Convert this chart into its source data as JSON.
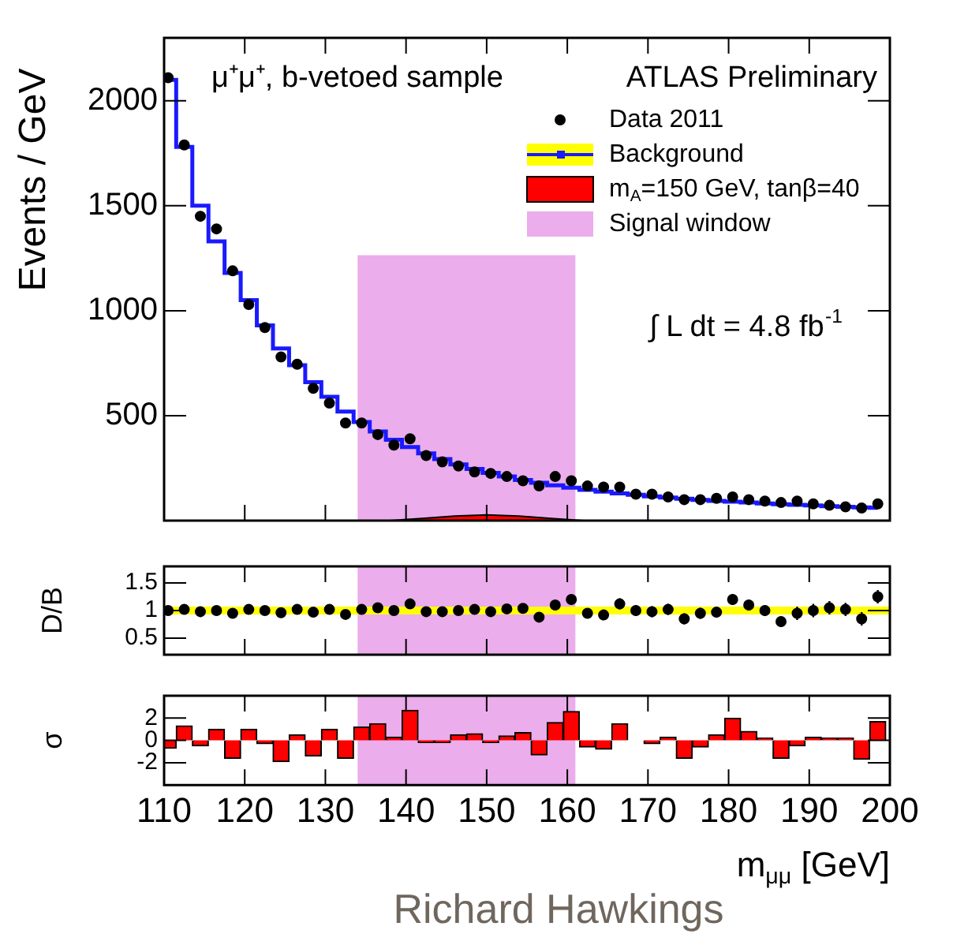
{
  "chart_data": [
    {
      "type": "scatter",
      "ylabel": "Events / GeV",
      "annotations": [
        "μ⁺μ⁺, b-vetoed sample",
        "ATLAS Preliminary",
        "∫ L dt = 4.8 fb$^{-1}$"
      ],
      "xlim": [
        110,
        200
      ],
      "xticks": [
        110,
        120,
        130,
        140,
        150,
        160,
        170,
        180,
        190,
        200
      ],
      "ylim": [
        0,
        2300
      ],
      "yticks": [
        500,
        1000,
        1500,
        2000
      ],
      "tick_labels": "y",
      "grid": false,
      "legend": "top right",
      "x": [
        110.5,
        112.5,
        114.5,
        116.5,
        118.5,
        120.5,
        122.5,
        124.5,
        126.5,
        128.5,
        130.5,
        132.5,
        134.5,
        136.5,
        138.5,
        140.5,
        142.5,
        144.5,
        146.5,
        148.5,
        150.5,
        152.5,
        154.5,
        156.5,
        158.5,
        160.5,
        162.5,
        164.5,
        166.5,
        168.5,
        170.5,
        172.5,
        174.5,
        176.5,
        178.5,
        180.5,
        182.5,
        184.5,
        186.5,
        188.5,
        190.5,
        192.5,
        194.5,
        196.5,
        198.5
      ],
      "series": [
        {
          "name": "Data 2011",
          "type": "scatter",
          "marker": "circle",
          "color": "#000000",
          "values": [
            2110,
            1790,
            1450,
            1390,
            1190,
            1030,
            920,
            780,
            745,
            630,
            560,
            465,
            465,
            410,
            360,
            390,
            310,
            280,
            260,
            232,
            225,
            210,
            190,
            165,
            210,
            190,
            165,
            160,
            160,
            126,
            126,
            113,
            100,
            100,
            106,
            113,
            100,
            93,
            86,
            93,
            80,
            73,
            66,
            60,
            80
          ]
        },
        {
          "name": "Background",
          "type": "step",
          "color": "#1a1aff",
          "values": [
            2100,
            1780,
            1500,
            1330,
            1180,
            1050,
            930,
            820,
            740,
            660,
            590,
            520,
            470,
            425,
            385,
            350,
            320,
            293,
            268,
            246,
            227,
            210,
            194,
            180,
            168,
            157,
            147,
            138,
            130,
            123,
            116,
            110,
            104,
            99,
            94,
            90,
            86,
            82,
            78,
            75,
            72,
            69,
            66,
            63,
            61
          ]
        },
        {
          "name": "m$_{A}$=150 GeV, tanβ=40",
          "type": "area",
          "color": "#ff0000",
          "x": [
            138,
            142,
            146,
            150,
            154,
            158,
            162
          ],
          "values": [
            0,
            10,
            22,
            27,
            22,
            10,
            0
          ]
        }
      ],
      "bands": [
        {
          "axis": "x",
          "from": 134,
          "to": 161,
          "label": "Signal window",
          "color": "#cc33cc"
        }
      ]
    },
    {
      "type": "scatter",
      "ylabel": "D/B",
      "xlim": [
        110,
        200
      ],
      "xticks": [
        110,
        120,
        130,
        140,
        150,
        160,
        170,
        180,
        190,
        200
      ],
      "ylim": [
        0.2,
        1.8
      ],
      "yticks": [
        0.5,
        1,
        1.5
      ],
      "tick_labels": "y",
      "grid": false,
      "x": [
        110.5,
        112.5,
        114.5,
        116.5,
        118.5,
        120.5,
        122.5,
        124.5,
        126.5,
        128.5,
        130.5,
        132.5,
        134.5,
        136.5,
        138.5,
        140.5,
        142.5,
        144.5,
        146.5,
        148.5,
        150.5,
        152.5,
        154.5,
        156.5,
        158.5,
        160.5,
        162.5,
        164.5,
        166.5,
        168.5,
        170.5,
        172.5,
        174.5,
        176.5,
        178.5,
        180.5,
        182.5,
        184.5,
        186.5,
        188.5,
        190.5,
        192.5,
        194.5,
        196.5,
        198.5
      ],
      "series": [
        {
          "color": "#000000",
          "marker": "circle",
          "values": [
            1.0,
            1.02,
            0.98,
            1.0,
            0.95,
            1.02,
            1.0,
            0.96,
            1.02,
            0.97,
            1.02,
            0.93,
            1.02,
            1.05,
            1.0,
            1.12,
            0.98,
            0.98,
            1.0,
            1.02,
            0.98,
            1.03,
            1.04,
            0.88,
            1.1,
            1.2,
            0.95,
            0.92,
            1.12,
            1.0,
            0.98,
            1.02,
            0.85,
            0.95,
            0.97,
            1.2,
            1.1,
            1.0,
            0.8,
            0.95,
            1.0,
            1.05,
            1.02,
            0.85,
            1.25
          ],
          "errors": [
            0.05,
            0.05,
            0.05,
            0.05,
            0.05,
            0.05,
            0.05,
            0.05,
            0.06,
            0.06,
            0.06,
            0.06,
            0.06,
            0.07,
            0.07,
            0.07,
            0.07,
            0.07,
            0.08,
            0.08,
            0.08,
            0.08,
            0.08,
            0.09,
            0.09,
            0.09,
            0.09,
            0.09,
            0.1,
            0.1,
            0.1,
            0.1,
            0.1,
            0.1,
            0.1,
            0.1,
            0.1,
            0.1,
            0.1,
            0.12,
            0.12,
            0.12,
            0.12,
            0.12,
            0.12
          ]
        }
      ],
      "ref_lines": [
        {
          "axis": "y",
          "value": 1,
          "color": "#ffff00"
        }
      ],
      "bands": [
        {
          "axis": "x",
          "from": 134,
          "to": 161,
          "color": "#cc33cc"
        }
      ]
    },
    {
      "type": "bar",
      "ylabel": "σ",
      "xlabel": "m$_{μμ}$ [GeV]",
      "annotations": [
        "Richard Hawkings"
      ],
      "xlim": [
        110,
        200
      ],
      "xticks": [
        110,
        120,
        130,
        140,
        150,
        160,
        170,
        180,
        190,
        200
      ],
      "ylim": [
        -4,
        4
      ],
      "yticks": [
        -2,
        0,
        2
      ],
      "grid": false,
      "x": [
        110.5,
        112.5,
        114.5,
        116.5,
        118.5,
        120.5,
        122.5,
        124.5,
        126.5,
        128.5,
        130.5,
        132.5,
        134.5,
        136.5,
        138.5,
        140.5,
        142.5,
        144.5,
        146.5,
        148.5,
        150.5,
        152.5,
        154.5,
        156.5,
        158.5,
        160.5,
        162.5,
        164.5,
        166.5,
        168.5,
        170.5,
        172.5,
        174.5,
        176.5,
        178.5,
        180.5,
        182.5,
        184.5,
        186.5,
        188.5,
        190.5,
        192.5,
        194.5,
        196.5,
        198.5
      ],
      "series": [
        {
          "color": "#ff0000",
          "values": [
            -0.7,
            1.3,
            -0.5,
            1.0,
            -1.6,
            1.0,
            -0.3,
            -1.9,
            0.5,
            -1.4,
            1.0,
            -1.6,
            1.2,
            1.5,
            0.3,
            2.7,
            -0.2,
            -0.2,
            0.5,
            0.6,
            -0.2,
            0.4,
            0.7,
            -1.3,
            1.6,
            2.6,
            -0.6,
            -0.8,
            1.5,
            0.0,
            -0.3,
            0.3,
            -1.6,
            -0.6,
            0.5,
            2.0,
            0.8,
            0.2,
            -1.6,
            -0.5,
            0.3,
            0.2,
            0.2,
            -1.7,
            1.7
          ]
        }
      ],
      "bands": [
        {
          "axis": "x",
          "from": 134,
          "to": 161,
          "color": "#cc33cc"
        }
      ]
    }
  ]
}
